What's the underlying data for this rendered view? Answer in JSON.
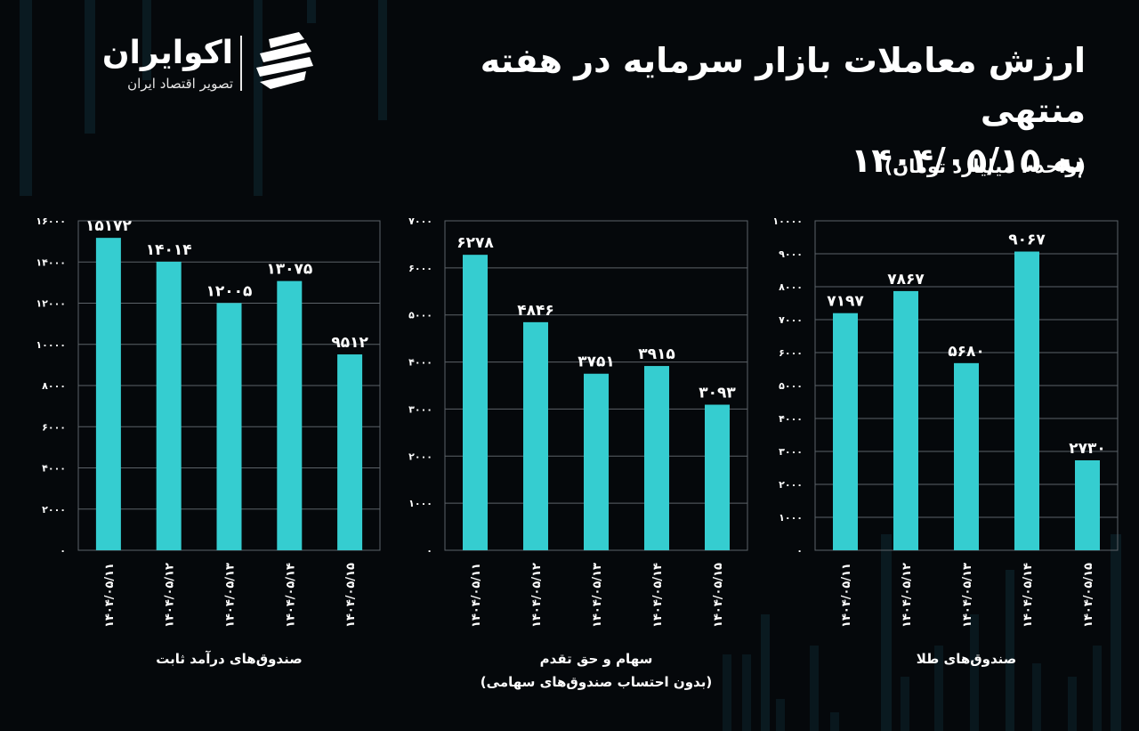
{
  "header": {
    "title_line1": "ارزش معاملات بازار سرمایه در هفته منتهی",
    "title_line2": "به ۱۴۰۴/۰۵/۱۵",
    "unit": "(واحد : میلیارد تومان)"
  },
  "logo": {
    "name": "اکوایران",
    "tagline": "تصویر اقتصاد ایران"
  },
  "colors": {
    "background": "#05080b",
    "bar": "#35cdd0",
    "grid": "#5c6268",
    "text": "#ffffff"
  },
  "chart_data": [
    {
      "type": "bar",
      "title": "",
      "xlabel": "صندوق‌های درآمد ثابت",
      "xlabel2": "",
      "ylabel": "",
      "categories": [
        "۱۴۰۴/۰۵/۱۱",
        "۱۴۰۴/۰۵/۱۲",
        "۱۴۰۴/۰۵/۱۳",
        "۱۴۰۴/۰۵/۱۴",
        "۱۴۰۴/۰۵/۱۵"
      ],
      "values": [
        15172,
        14014,
        12005,
        13075,
        9512
      ],
      "value_labels": [
        "۱۵۱۷۲",
        "۱۴۰۱۴",
        "۱۲۰۰۵",
        "۱۳۰۷۵",
        "۹۵۱۲"
      ],
      "ylim": [
        0,
        16000
      ],
      "yticks": [
        0,
        2000,
        4000,
        6000,
        8000,
        10000,
        12000,
        14000,
        16000
      ],
      "ytick_labels": [
        "۰",
        "۲۰۰۰",
        "۴۰۰۰",
        "۶۰۰۰",
        "۸۰۰۰",
        "۱۰۰۰۰",
        "۱۲۰۰۰",
        "۱۴۰۰۰",
        "۱۶۰۰۰"
      ],
      "grid": true
    },
    {
      "type": "bar",
      "title": "",
      "xlabel": "سهام و حق تقدم",
      "xlabel2": "(بدون احتساب صندوق‌های سهامی)",
      "ylabel": "",
      "categories": [
        "۱۴۰۴/۰۵/۱۱",
        "۱۴۰۴/۰۵/۱۲",
        "۱۴۰۴/۰۵/۱۳",
        "۱۴۰۴/۰۵/۱۴",
        "۱۴۰۴/۰۵/۱۵"
      ],
      "values": [
        6278,
        4846,
        3751,
        3915,
        3093
      ],
      "value_labels": [
        "۶۲۷۸",
        "۴۸۴۶",
        "۳۷۵۱",
        "۳۹۱۵",
        "۳۰۹۳"
      ],
      "ylim": [
        0,
        7000
      ],
      "yticks": [
        0,
        1000,
        2000,
        3000,
        4000,
        5000,
        6000,
        7000
      ],
      "ytick_labels": [
        "۰",
        "۱۰۰۰",
        "۲۰۰۰",
        "۳۰۰۰",
        "۴۰۰۰",
        "۵۰۰۰",
        "۶۰۰۰",
        "۷۰۰۰"
      ],
      "grid": true
    },
    {
      "type": "bar",
      "title": "",
      "xlabel": "صندوق‌های طلا",
      "xlabel2": "",
      "ylabel": "",
      "categories": [
        "۱۴۰۴/۰۵/۱۱",
        "۱۴۰۴/۰۵/۱۲",
        "۱۴۰۴/۰۵/۱۳",
        "۱۴۰۴/۰۵/۱۴",
        "۱۴۰۴/۰۵/۱۵"
      ],
      "values": [
        7197,
        7867,
        5680,
        9067,
        2730
      ],
      "value_labels": [
        "۷۱۹۷",
        "۷۸۶۷",
        "۵۶۸۰",
        "۹۰۶۷",
        "۲۷۳۰"
      ],
      "ylim": [
        0,
        10000
      ],
      "yticks": [
        0,
        1000,
        2000,
        3000,
        4000,
        5000,
        6000,
        7000,
        8000,
        9000,
        10000
      ],
      "ytick_labels": [
        "۰",
        "۱۰۰۰",
        "۲۰۰۰",
        "۳۰۰۰",
        "۴۰۰۰",
        "۵۰۰۰",
        "۶۰۰۰",
        "۷۰۰۰",
        "۸۰۰۰",
        "۹۰۰۰",
        "۱۰۰۰۰"
      ],
      "grid": true
    }
  ]
}
